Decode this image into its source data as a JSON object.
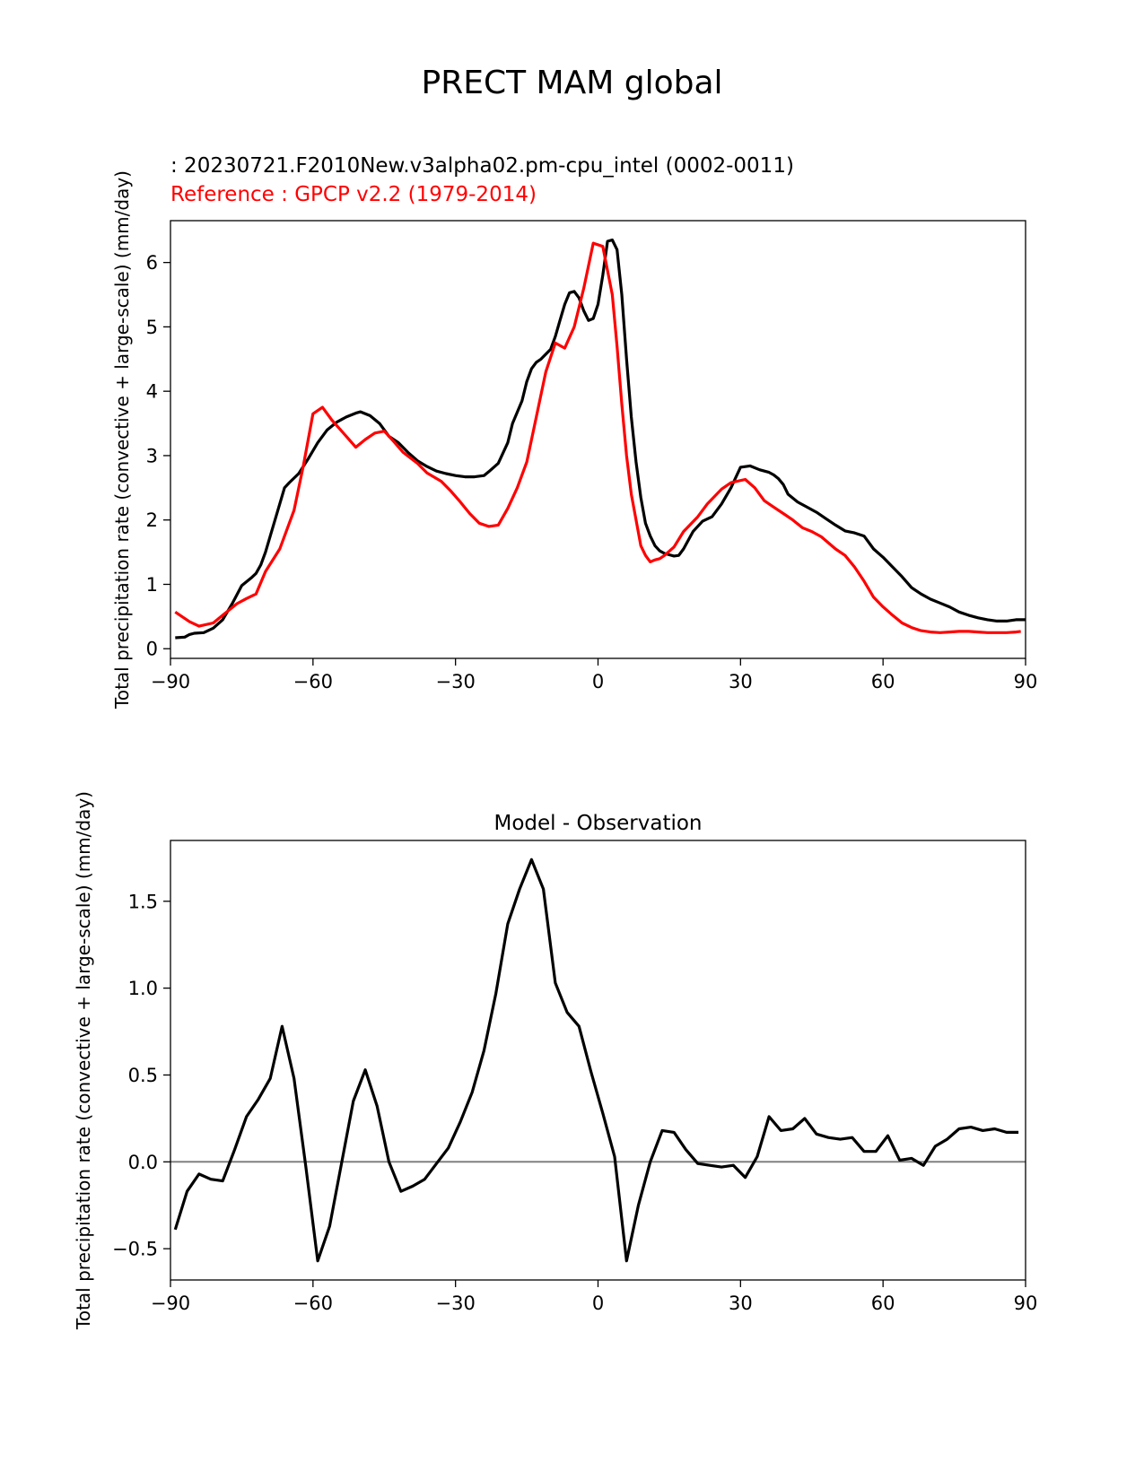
{
  "title": "PRECT MAM global",
  "test_label": "    : 20230721.F2010New.v3alpha02.pm-cpu_intel (0002-0011)",
  "ref_label": "Reference : GPCP v2.2 (1979-2014)",
  "colors": {
    "test": "#000000",
    "reference": "#ff0000",
    "zero_line": "#808080"
  },
  "chart_data": [
    {
      "type": "line",
      "title": "",
      "xlabel": "",
      "ylabel": "Total precipitation rate (convective + large-scale) (mm/day)",
      "xlim": [
        -90,
        90
      ],
      "ylim": [
        -0.15,
        6.65
      ],
      "xticks": [
        -90,
        -60,
        -30,
        0,
        30,
        60,
        90
      ],
      "xtick_labels": [
        "−90",
        "−60",
        "−30",
        "0",
        "30",
        "60",
        "90"
      ],
      "yticks": [
        0,
        1,
        2,
        3,
        4,
        5,
        6
      ],
      "ytick_labels": [
        "0",
        "1",
        "2",
        "3",
        "4",
        "5",
        "6"
      ],
      "series": [
        {
          "name": "test",
          "x": [
            -89,
            -87,
            -86,
            -85,
            -83,
            -81,
            -79,
            -77,
            -75,
            -73,
            -72,
            -71,
            -70,
            -69,
            -68,
            -66,
            -65,
            -63,
            -61,
            -59,
            -57,
            -55,
            -53,
            -51,
            -50,
            -48,
            -46,
            -44,
            -42,
            -40,
            -38,
            -36,
            -34,
            -32,
            -30,
            -28,
            -26,
            -24,
            -23,
            -21,
            -19,
            -18,
            -16,
            -15,
            -14,
            -13,
            -12,
            -10,
            -9,
            -8,
            -7,
            -6,
            -5,
            -4,
            -3,
            -2,
            -1,
            0,
            1,
            2,
            3,
            4,
            5,
            6,
            7,
            8,
            9,
            10,
            11,
            12,
            13,
            14,
            15,
            16,
            17,
            18,
            20,
            22,
            24,
            26,
            28,
            30,
            32,
            34,
            36,
            37,
            38,
            39,
            40,
            42,
            44,
            46,
            48,
            50,
            52,
            54,
            56,
            58,
            60,
            62,
            64,
            66,
            68,
            70,
            72,
            74,
            76,
            78,
            80,
            82,
            84,
            86,
            88,
            90
          ],
          "values": [
            0.17,
            0.18,
            0.22,
            0.24,
            0.25,
            0.32,
            0.45,
            0.7,
            0.98,
            1.1,
            1.17,
            1.3,
            1.5,
            1.75,
            2.0,
            2.5,
            2.58,
            2.72,
            2.95,
            3.2,
            3.4,
            3.52,
            3.6,
            3.66,
            3.68,
            3.62,
            3.5,
            3.3,
            3.2,
            3.05,
            2.92,
            2.83,
            2.76,
            2.72,
            2.69,
            2.67,
            2.67,
            2.69,
            2.75,
            2.88,
            3.2,
            3.5,
            3.85,
            4.15,
            4.35,
            4.45,
            4.5,
            4.65,
            4.85,
            5.1,
            5.35,
            5.53,
            5.55,
            5.45,
            5.25,
            5.1,
            5.13,
            5.35,
            5.8,
            6.33,
            6.35,
            6.2,
            5.5,
            4.5,
            3.6,
            2.9,
            2.35,
            1.95,
            1.75,
            1.6,
            1.52,
            1.48,
            1.46,
            1.44,
            1.45,
            1.55,
            1.82,
            1.98,
            2.05,
            2.25,
            2.5,
            2.82,
            2.84,
            2.78,
            2.74,
            2.7,
            2.64,
            2.55,
            2.4,
            2.28,
            2.2,
            2.12,
            2.02,
            1.92,
            1.83,
            1.8,
            1.75,
            1.55,
            1.42,
            1.27,
            1.12,
            0.95,
            0.85,
            0.77,
            0.71,
            0.65,
            0.57,
            0.52,
            0.48,
            0.45,
            0.43,
            0.43,
            0.45,
            0.45
          ]
        },
        {
          "name": "reference",
          "x": [
            -89,
            -86,
            -84,
            -81,
            -79,
            -76,
            -74,
            -72,
            -70,
            -67,
            -64,
            -62,
            -60,
            -58,
            -56,
            -53,
            -51,
            -49,
            -47,
            -45,
            -43,
            -41,
            -38,
            -36,
            -33,
            -31,
            -29,
            -27,
            -25,
            -23,
            -21,
            -19,
            -17,
            -15,
            -13,
            -11,
            -9,
            -7,
            -5,
            -3,
            -1,
            1,
            3,
            4,
            5,
            6,
            7,
            8,
            9,
            10,
            11,
            12,
            13,
            14,
            16,
            18,
            21,
            23,
            26,
            28,
            31,
            33,
            35,
            37,
            39,
            41,
            43,
            45,
            47,
            50,
            52,
            54,
            56,
            58,
            60,
            62,
            64,
            66,
            68,
            70,
            72,
            74,
            76,
            78,
            80,
            82,
            84,
            86,
            88,
            89
          ],
          "values": [
            0.57,
            0.42,
            0.35,
            0.4,
            0.52,
            0.7,
            0.78,
            0.85,
            1.2,
            1.55,
            2.15,
            2.85,
            3.65,
            3.75,
            3.55,
            3.3,
            3.13,
            3.25,
            3.35,
            3.38,
            3.22,
            3.05,
            2.88,
            2.73,
            2.6,
            2.45,
            2.28,
            2.1,
            1.95,
            1.9,
            1.92,
            2.18,
            2.5,
            2.9,
            3.6,
            4.3,
            4.75,
            4.67,
            5.0,
            5.6,
            6.3,
            6.25,
            5.5,
            4.7,
            3.8,
            3.0,
            2.4,
            2.0,
            1.6,
            1.45,
            1.35,
            1.38,
            1.4,
            1.45,
            1.58,
            1.82,
            2.05,
            2.25,
            2.48,
            2.58,
            2.63,
            2.5,
            2.3,
            2.2,
            2.1,
            2.0,
            1.88,
            1.82,
            1.74,
            1.55,
            1.45,
            1.27,
            1.05,
            0.8,
            0.65,
            0.52,
            0.4,
            0.33,
            0.28,
            0.26,
            0.25,
            0.26,
            0.27,
            0.27,
            0.26,
            0.25,
            0.25,
            0.25,
            0.26,
            0.27
          ]
        }
      ]
    },
    {
      "type": "line",
      "title": "Model - Observation",
      "xlabel": "",
      "ylabel": "Total precipitation rate (convective + large-scale) (mm/day)",
      "xlim": [
        -90,
        90
      ],
      "ylim": [
        -0.68,
        1.85
      ],
      "xticks": [
        -90,
        -60,
        -30,
        0,
        30,
        60,
        90
      ],
      "xtick_labels": [
        "−90",
        "−60",
        "−30",
        "0",
        "30",
        "60",
        "90"
      ],
      "yticks": [
        -0.5,
        0.0,
        0.5,
        1.0,
        1.5
      ],
      "ytick_labels": [
        "−0.5",
        "0.0",
        "0.5",
        "1.0",
        "1.5"
      ],
      "zero_line": 0.0,
      "series": [
        {
          "name": "difference",
          "x": [
            -89,
            -86.5,
            -84,
            -81.5,
            -79,
            -76.5,
            -74,
            -71.5,
            -69,
            -66.5,
            -64,
            -61.5,
            -59,
            -56.5,
            -54,
            -51.5,
            -49,
            -46.5,
            -44,
            -41.5,
            -39,
            -36.5,
            -34,
            -31.5,
            -29,
            -26.5,
            -24,
            -21.5,
            -19,
            -16.5,
            -14,
            -11.5,
            -9,
            -6.5,
            -4,
            -1.5,
            1,
            3.5,
            6,
            8.5,
            11,
            13.5,
            16,
            18.5,
            21,
            23.5,
            26,
            28.5,
            31,
            33.5,
            36,
            38.5,
            41,
            43.5,
            46,
            48.5,
            51,
            53.5,
            56,
            58.5,
            61,
            63.5,
            66,
            68.5,
            71,
            73.5,
            76,
            78.5,
            81,
            83.5,
            86,
            88.5
          ],
          "values": [
            -0.39,
            -0.17,
            -0.07,
            -0.1,
            -0.11,
            0.07,
            0.26,
            0.36,
            0.48,
            0.78,
            0.48,
            -0.03,
            -0.57,
            -0.37,
            -0.01,
            0.35,
            0.53,
            0.32,
            0.0,
            -0.17,
            -0.14,
            -0.1,
            -0.01,
            0.08,
            0.23,
            0.4,
            0.64,
            0.97,
            1.37,
            1.57,
            1.74,
            1.57,
            1.03,
            0.86,
            0.78,
            0.52,
            0.28,
            0.03,
            -0.57,
            -0.25,
            0.0,
            0.18,
            0.17,
            0.07,
            -0.01,
            -0.02,
            -0.03,
            -0.02,
            -0.09,
            0.03,
            0.26,
            0.18,
            0.19,
            0.25,
            0.16,
            0.14,
            0.13,
            0.14,
            0.06,
            0.06,
            0.15,
            0.01,
            0.02,
            -0.02,
            0.09,
            0.13,
            0.19,
            0.2,
            0.18,
            0.19,
            0.17,
            0.17
          ]
        }
      ]
    }
  ]
}
